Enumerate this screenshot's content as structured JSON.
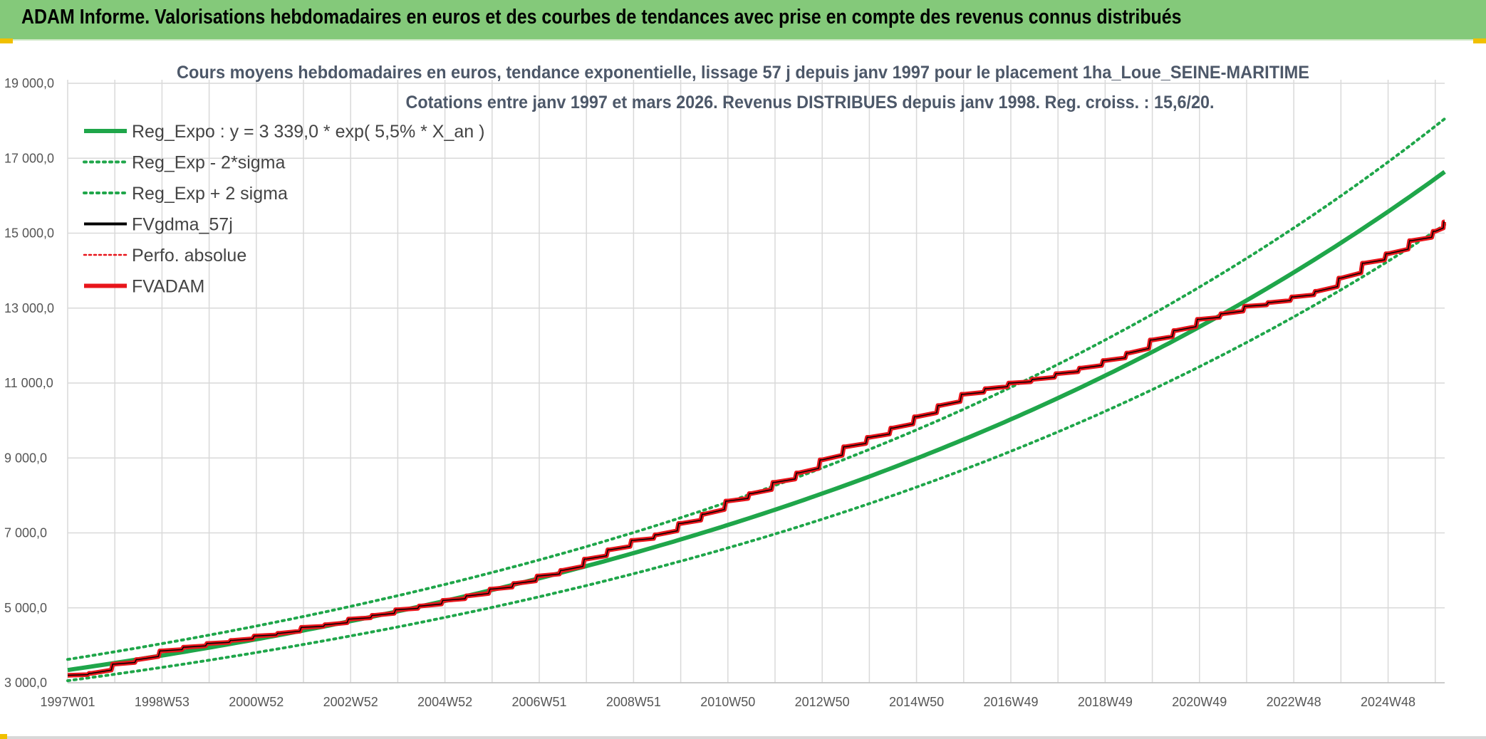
{
  "header": {
    "title": "ADAM Informe. Valorisations hebdomadaires en euros et des courbes de tendances avec prise en compte des revenus connus distribués"
  },
  "colors": {
    "header_bg": "#84c97a",
    "green_series": "#1fa64a",
    "red_series": "#e8151b",
    "black_series": "#000000",
    "grid": "#d9d9d9"
  },
  "chart_data": {
    "type": "line",
    "title_line1": "Cours moyens hebdomadaires en euros, tendance exponentielle, lissage 57 j depuis janv 1997 pour le placement 1ha_Loue_SEINE-MARITIME",
    "title_line2": "Cotations entre janv 1997 et mars 2026. Revenus DISTRIBUES depuis janv 1998. Reg. croiss. : 15,6/20.",
    "xlabel": "",
    "ylabel": "",
    "ylim": [
      3000,
      19000
    ],
    "xlim": [
      1997.0,
      2026.2
    ],
    "grid": true,
    "legend_placement": "top-left",
    "y_ticks": [
      3000,
      5000,
      7000,
      9000,
      11000,
      13000,
      15000,
      17000,
      19000
    ],
    "y_tick_labels": [
      "3 000,0",
      "5 000,0",
      "7 000,0",
      "9 000,0",
      "11 000,0",
      "13 000,0",
      "15 000,0",
      "17 000,0",
      "19 000,0"
    ],
    "x_ticks": [
      1997.0,
      1999.0,
      2001.0,
      2003.0,
      2005.0,
      2007.0,
      2009.0,
      2011.0,
      2013.0,
      2015.0,
      2017.0,
      2019.0,
      2021.0,
      2023.0,
      2025.0
    ],
    "x_tick_labels": [
      "1997W01",
      "1998W53",
      "2000W52",
      "2002W52",
      "2004W52",
      "2006W51",
      "2008W51",
      "2010W50",
      "2012W50",
      "2014W50",
      "2016W49",
      "2018W49",
      "2020W49",
      "2022W48",
      "2024W48"
    ],
    "regression": {
      "a": 3339.0,
      "rate": 0.055,
      "start": 1997.0,
      "end": 2026.2,
      "band_factor_low": 0.915,
      "band_factor_high": 1.085
    },
    "series": [
      {
        "name": "Reg_Expo : y = 3 339,0 * exp( 5,5% *  X_an )",
        "style": "solid",
        "color": "#1fa64a"
      },
      {
        "name": "Reg_Exp - 2*sigma",
        "style": "dotted",
        "color": "#1fa64a"
      },
      {
        "name": "Reg_Exp + 2 sigma",
        "style": "dotted",
        "color": "#1fa64a"
      },
      {
        "name": "FVgdma_57j",
        "style": "solid",
        "color": "#000000",
        "x": [
          1997.0,
          1997.5,
          1998.0,
          1998.5,
          1999.0,
          1999.5,
          2000.0,
          2000.5,
          2001.0,
          2001.5,
          2002.0,
          2002.5,
          2003.0,
          2003.5,
          2004.0,
          2004.5,
          2005.0,
          2005.5,
          2006.0,
          2006.5,
          2007.0,
          2007.5,
          2008.0,
          2008.5,
          2009.0,
          2009.5,
          2010.0,
          2010.5,
          2011.0,
          2011.5,
          2012.0,
          2012.5,
          2013.0,
          2013.5,
          2014.0,
          2014.5,
          2015.0,
          2015.5,
          2016.0,
          2016.5,
          2017.0,
          2017.5,
          2018.0,
          2018.5,
          2019.0,
          2019.5,
          2020.0,
          2020.5,
          2021.0,
          2021.5,
          2022.0,
          2022.5,
          2023.0,
          2023.5,
          2024.0,
          2024.5,
          2025.0,
          2025.5,
          2026.0,
          2026.2
        ],
        "values": [
          3200,
          3250,
          3500,
          3620,
          3850,
          3950,
          4050,
          4130,
          4250,
          4320,
          4480,
          4550,
          4700,
          4800,
          4950,
          5050,
          5200,
          5320,
          5500,
          5650,
          5850,
          6000,
          6300,
          6550,
          6800,
          6950,
          7250,
          7500,
          7850,
          8050,
          8350,
          8600,
          8950,
          9300,
          9550,
          9800,
          10100,
          10400,
          10700,
          10850,
          11000,
          11100,
          11250,
          11400,
          11600,
          11800,
          12150,
          12400,
          12700,
          12850,
          13050,
          13150,
          13300,
          13450,
          13800,
          14200,
          14450,
          14800,
          15050,
          15300
        ]
      },
      {
        "name": "Perfo. absolue",
        "style": "dotted",
        "color": "#e8151b"
      },
      {
        "name": "FVADAM",
        "style": "solid",
        "color": "#e8151b",
        "x": [
          1997.0,
          1997.5,
          1998.0,
          1998.5,
          1999.0,
          1999.5,
          2000.0,
          2000.5,
          2001.0,
          2001.5,
          2002.0,
          2002.5,
          2003.0,
          2003.5,
          2004.0,
          2004.5,
          2005.0,
          2005.5,
          2006.0,
          2006.5,
          2007.0,
          2007.5,
          2008.0,
          2008.5,
          2009.0,
          2009.5,
          2010.0,
          2010.5,
          2011.0,
          2011.5,
          2012.0,
          2012.5,
          2013.0,
          2013.5,
          2014.0,
          2014.5,
          2015.0,
          2015.5,
          2016.0,
          2016.5,
          2017.0,
          2017.5,
          2018.0,
          2018.5,
          2019.0,
          2019.5,
          2020.0,
          2020.5,
          2021.0,
          2021.5,
          2022.0,
          2022.5,
          2023.0,
          2023.5,
          2024.0,
          2024.5,
          2025.0,
          2025.5,
          2026.0,
          2026.2
        ],
        "values": [
          3200,
          3250,
          3500,
          3620,
          3850,
          3950,
          4050,
          4130,
          4250,
          4320,
          4480,
          4550,
          4700,
          4800,
          4950,
          5050,
          5200,
          5320,
          5500,
          5650,
          5850,
          6000,
          6300,
          6550,
          6800,
          6950,
          7250,
          7500,
          7850,
          8050,
          8350,
          8600,
          8950,
          9300,
          9550,
          9800,
          10100,
          10400,
          10700,
          10850,
          11000,
          11100,
          11250,
          11400,
          11600,
          11800,
          12150,
          12400,
          12700,
          12850,
          13050,
          13150,
          13300,
          13450,
          13800,
          14200,
          14450,
          14800,
          15050,
          15300
        ]
      }
    ]
  }
}
